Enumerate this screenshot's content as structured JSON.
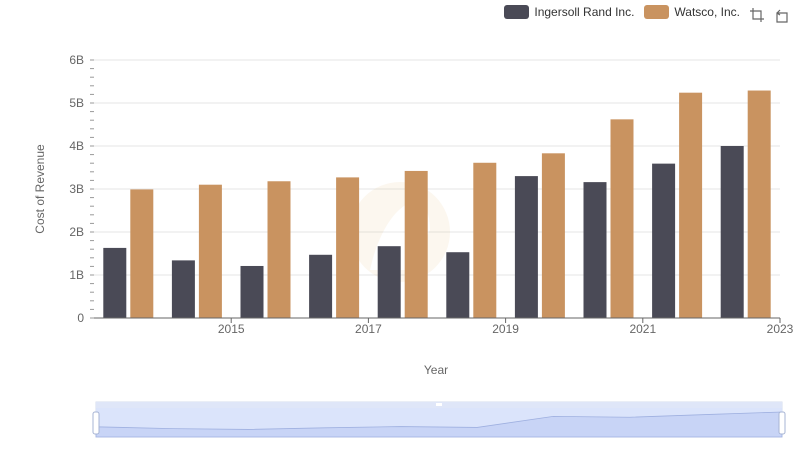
{
  "chart_data": {
    "type": "bar",
    "x": [
      2014,
      2015,
      2016,
      2017,
      2018,
      2019,
      2020,
      2021,
      2022,
      2023
    ],
    "x_tick_labels": [
      "2015",
      "2017",
      "2019",
      "2021",
      "2023"
    ],
    "xlabel": "Year",
    "ylabel": "Cost of Revenue",
    "ylim": [
      0,
      6000000000
    ],
    "y_tick_labels": [
      "0",
      "1B",
      "2B",
      "3B",
      "4B",
      "5B",
      "6B"
    ],
    "series": [
      {
        "name": "Ingersoll Rand Inc.",
        "color": "#4a4a56",
        "values": [
          1630000000,
          1340000000,
          1210000000,
          1470000000,
          1670000000,
          1530000000,
          3300000000,
          3160000000,
          3590000000,
          4000000000
        ]
      },
      {
        "name": "Watsco, Inc.",
        "color": "#c99360",
        "values": [
          2990000000,
          3100000000,
          3180000000,
          3270000000,
          3420000000,
          3610000000,
          3830000000,
          4620000000,
          5240000000,
          5290000000
        ]
      }
    ],
    "grid": true,
    "legend_position": "top-right"
  },
  "toolbox": {
    "zoom_icon": "zoom-select-icon",
    "restore_icon": "restore-icon"
  },
  "datazoom": {
    "start": 0,
    "end": 1
  }
}
